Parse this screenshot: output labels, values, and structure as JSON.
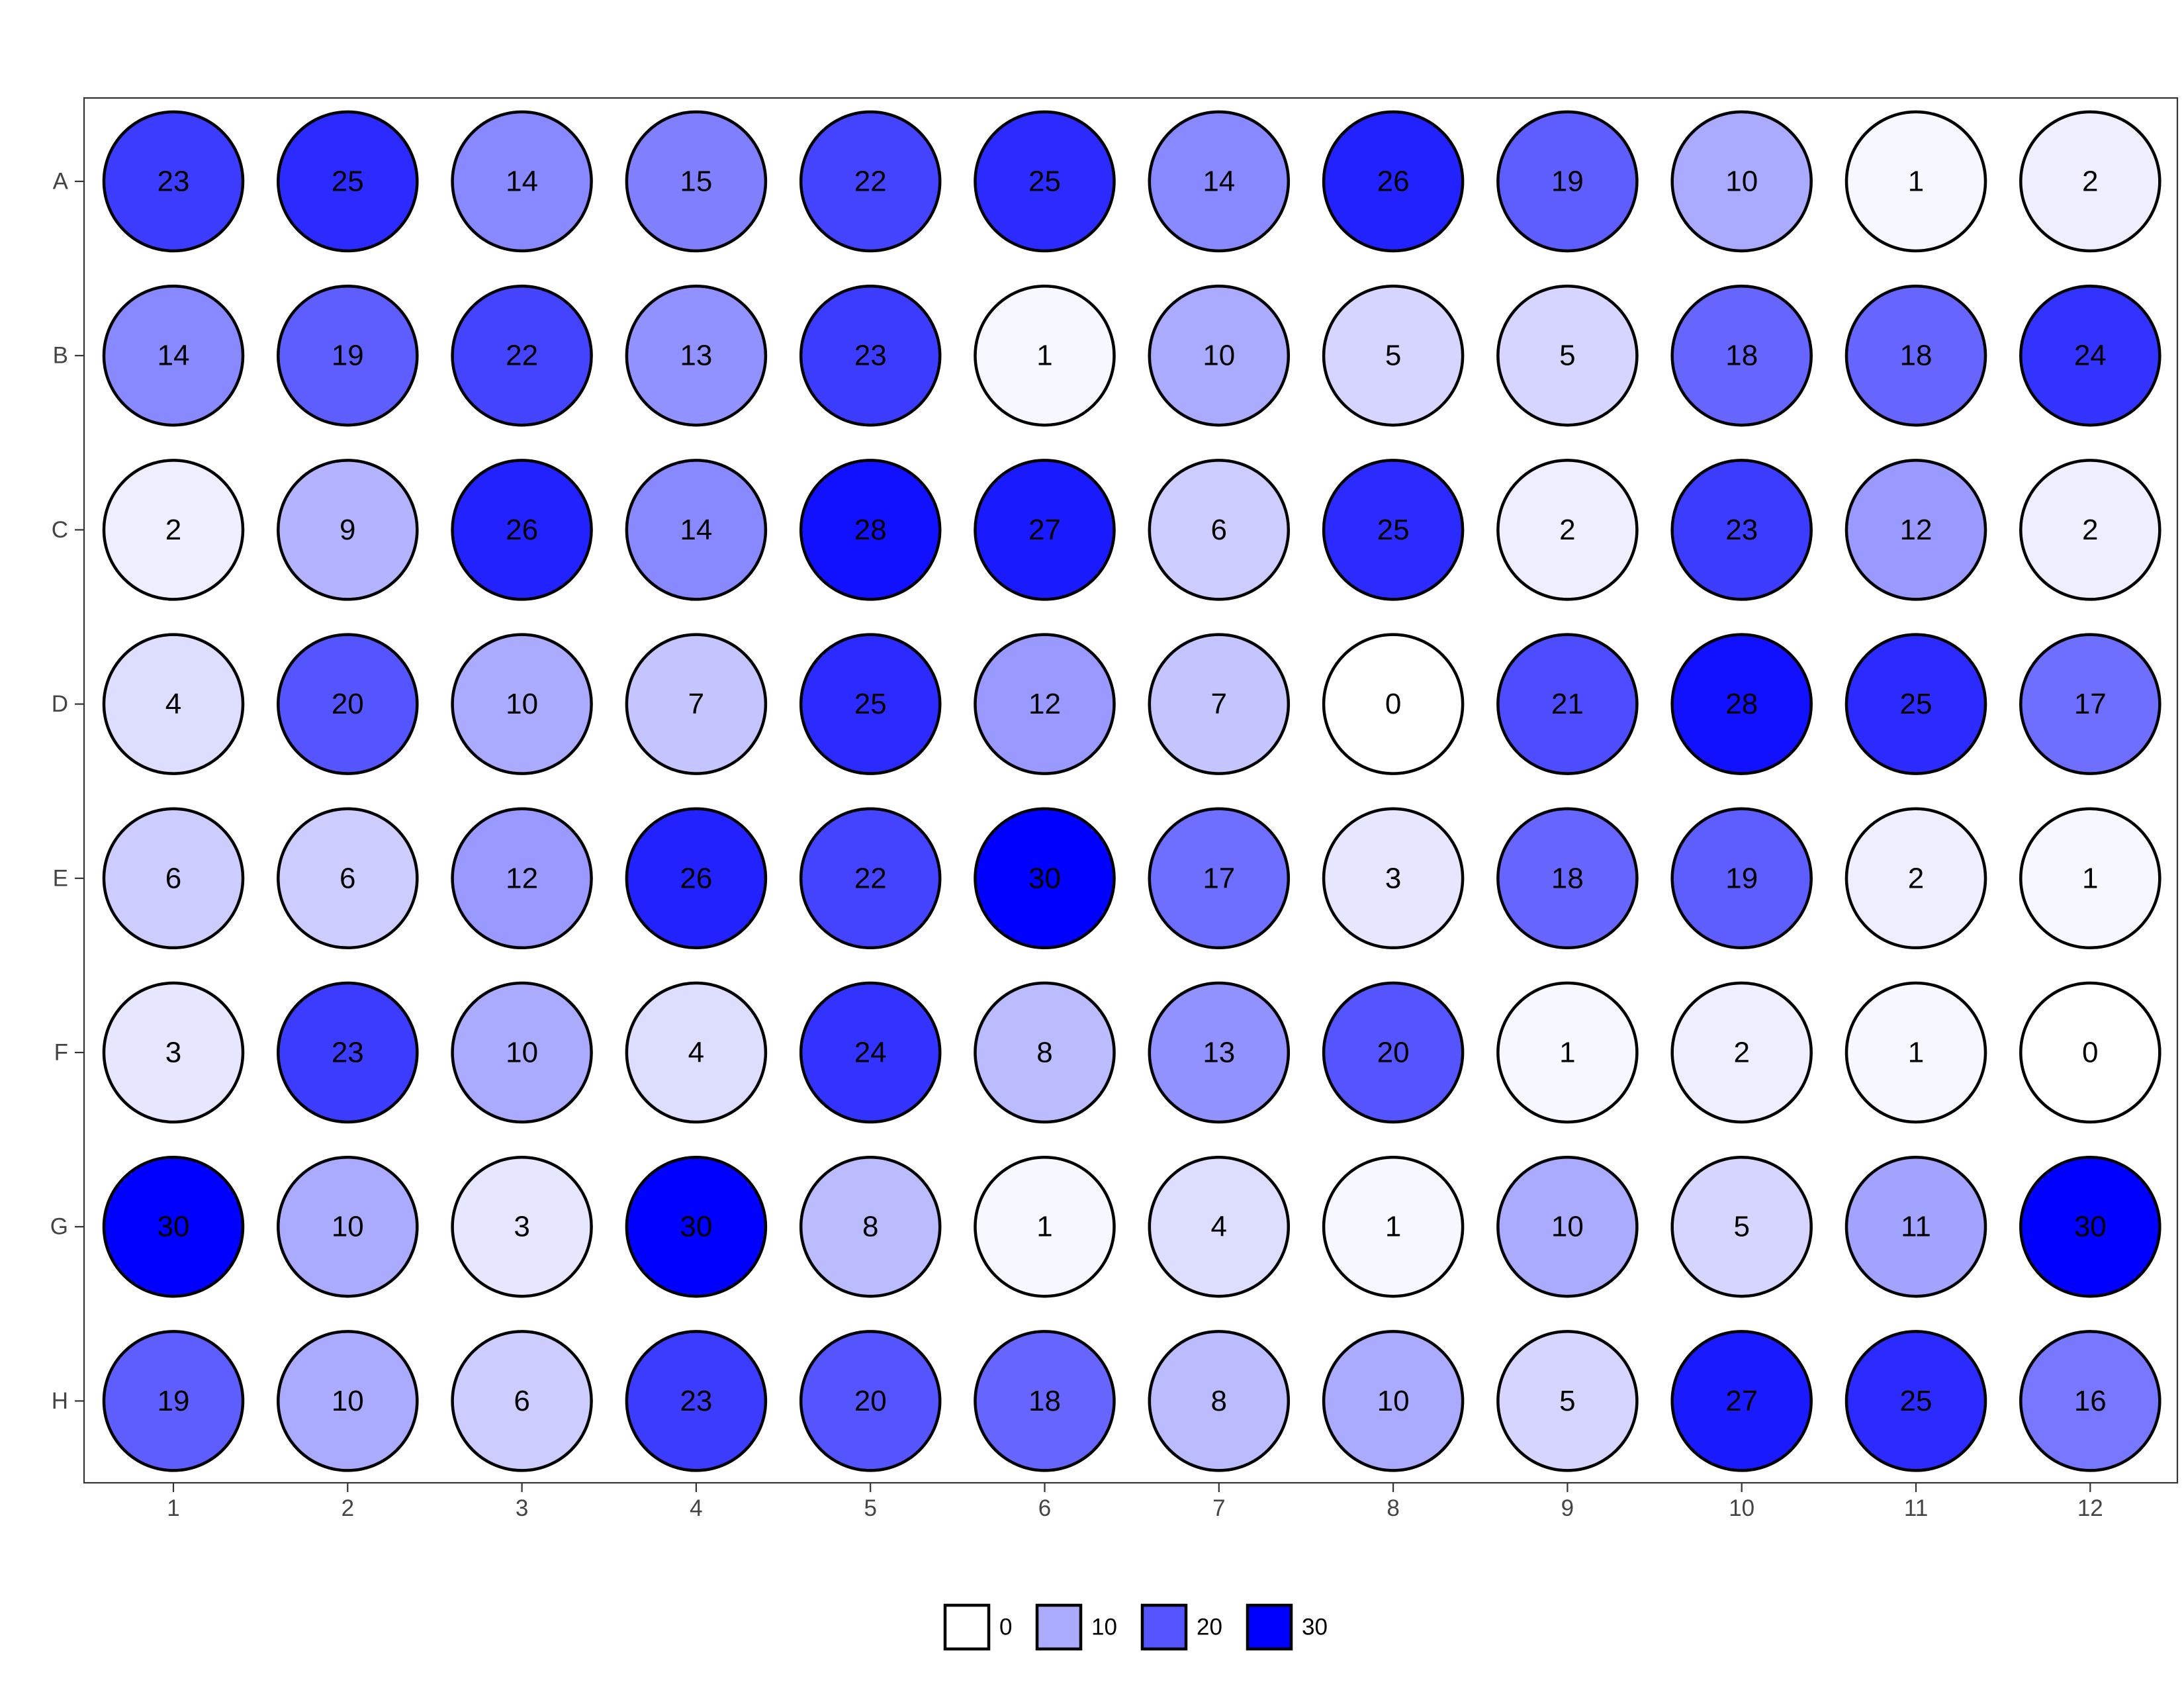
{
  "chart_data": {
    "type": "heatmap",
    "title": "",
    "xlabel": "",
    "ylabel": "",
    "rows": [
      "A",
      "B",
      "C",
      "D",
      "E",
      "F",
      "G",
      "H"
    ],
    "columns": [
      "1",
      "2",
      "3",
      "4",
      "5",
      "6",
      "7",
      "8",
      "9",
      "10",
      "11",
      "12"
    ],
    "values": [
      [
        23,
        25,
        14,
        15,
        22,
        25,
        14,
        26,
        19,
        10,
        1,
        2
      ],
      [
        14,
        19,
        22,
        13,
        23,
        1,
        10,
        5,
        5,
        18,
        18,
        24
      ],
      [
        2,
        9,
        26,
        14,
        28,
        27,
        6,
        25,
        2,
        23,
        12,
        2
      ],
      [
        4,
        20,
        10,
        7,
        25,
        12,
        7,
        0,
        21,
        28,
        25,
        17
      ],
      [
        6,
        6,
        12,
        26,
        22,
        30,
        17,
        3,
        18,
        19,
        2,
        1
      ],
      [
        3,
        23,
        10,
        4,
        24,
        8,
        13,
        20,
        1,
        2,
        1,
        0
      ],
      [
        30,
        10,
        3,
        30,
        8,
        1,
        4,
        1,
        10,
        5,
        11,
        30
      ],
      [
        19,
        10,
        6,
        23,
        20,
        18,
        8,
        10,
        5,
        27,
        25,
        16
      ]
    ],
    "color_scale": {
      "low": "#ffffff",
      "high": "#0000ff",
      "limits": [
        0,
        30
      ]
    },
    "legend": {
      "position": "bottom",
      "entries": [
        {
          "label": "0",
          "value": 0
        },
        {
          "label": "10",
          "value": 10
        },
        {
          "label": "20",
          "value": 20
        },
        {
          "label": "30",
          "value": 30
        }
      ]
    },
    "grid": false
  }
}
